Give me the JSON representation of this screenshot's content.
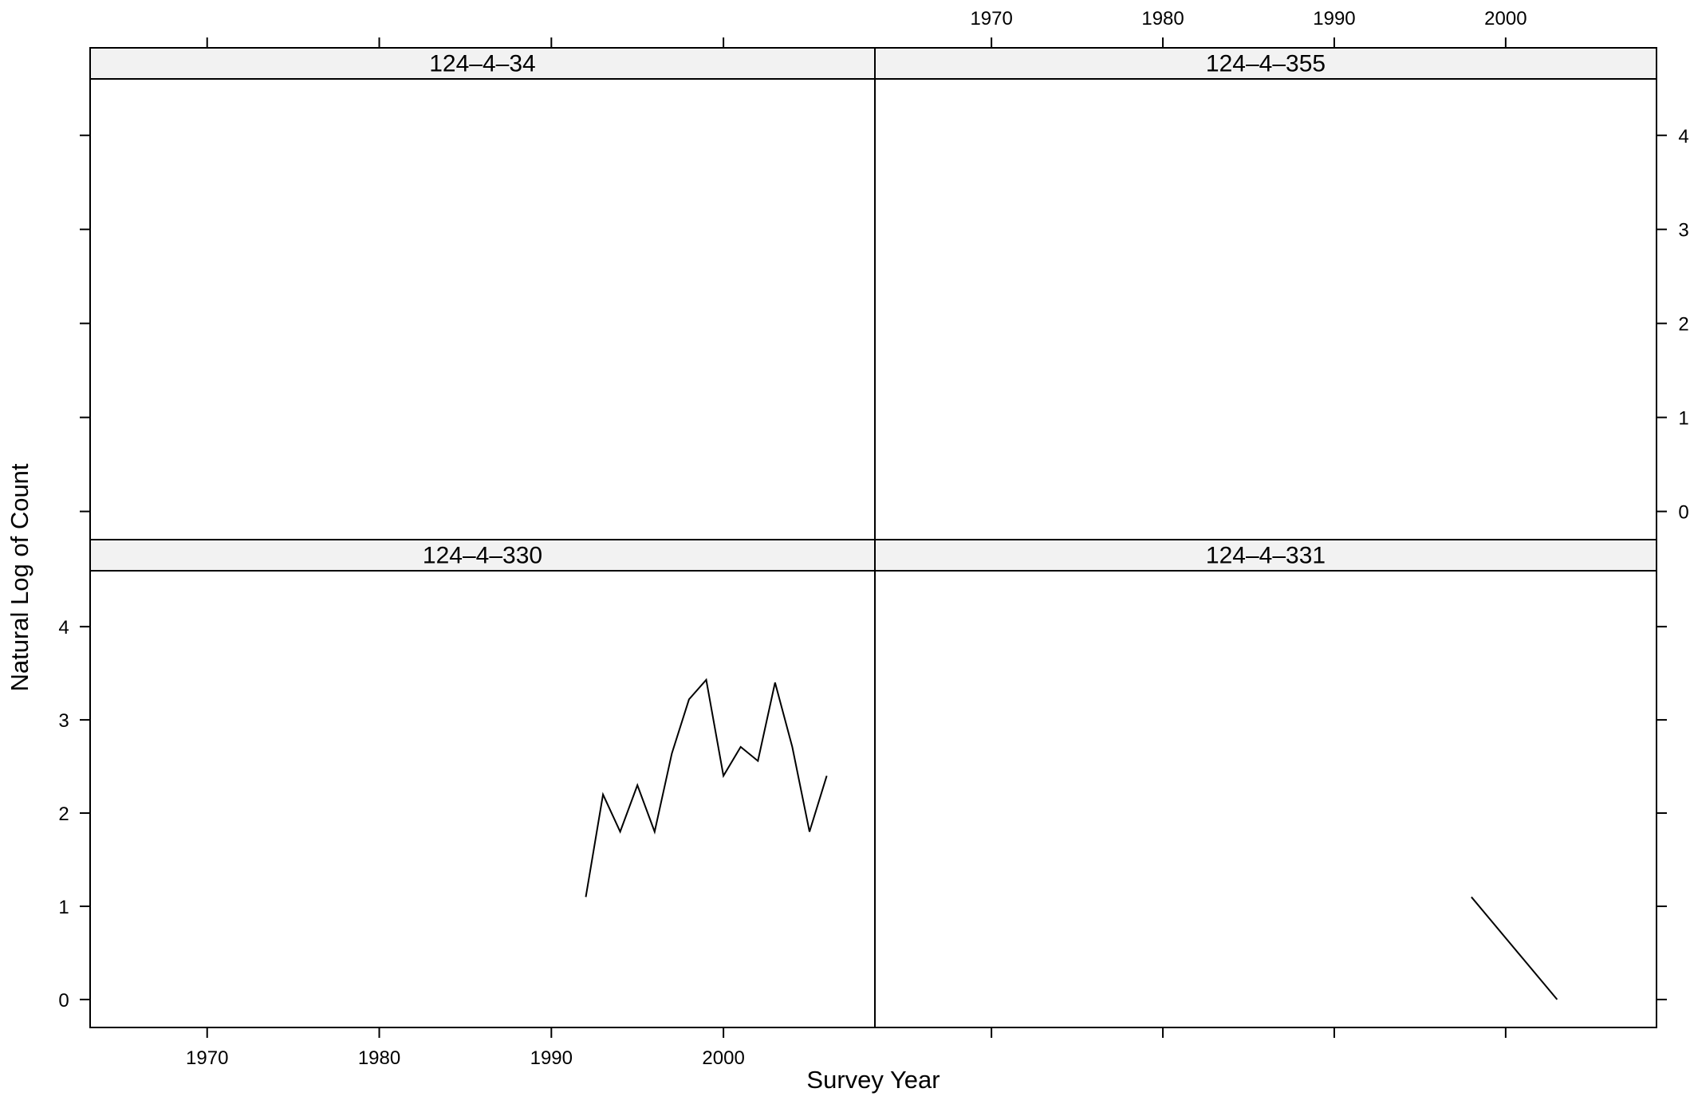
{
  "chart_data": {
    "type": "line",
    "layout": "lattice 2x2 (as.table=FALSE)",
    "xlabel": "Survey Year",
    "ylabel": "Natural Log of Count",
    "xlim": [
      1963.2,
      2008.8
    ],
    "ylim": [
      -0.3,
      4.6
    ],
    "x_ticks": [
      1970,
      1980,
      1990,
      2000
    ],
    "y_ticks": [
      0,
      1,
      2,
      3,
      4
    ],
    "panels": [
      {
        "title": "124–4–34",
        "row": 0,
        "col": 0,
        "series": [
          {
            "x": [],
            "y": []
          }
        ]
      },
      {
        "title": "124–4–355",
        "row": 0,
        "col": 1,
        "series": [
          {
            "x": [],
            "y": []
          }
        ]
      },
      {
        "title": "124–4–330",
        "row": 1,
        "col": 0,
        "series": [
          {
            "x": [
              1992,
              1993,
              1994,
              1995,
              1996,
              1997,
              1998,
              1999,
              2000,
              2001,
              2002,
              2003,
              2004,
              2005,
              2006
            ],
            "y": [
              1.1,
              2.2,
              1.8,
              2.3,
              1.8,
              2.64,
              3.22,
              3.43,
              2.4,
              2.71,
              2.56,
              3.4,
              2.71,
              1.8,
              2.4
            ]
          }
        ]
      },
      {
        "title": "124–4–331",
        "row": 1,
        "col": 1,
        "series": [
          {
            "x": [
              1998,
              2003
            ],
            "y": [
              1.1,
              0.0
            ]
          }
        ]
      }
    ]
  }
}
